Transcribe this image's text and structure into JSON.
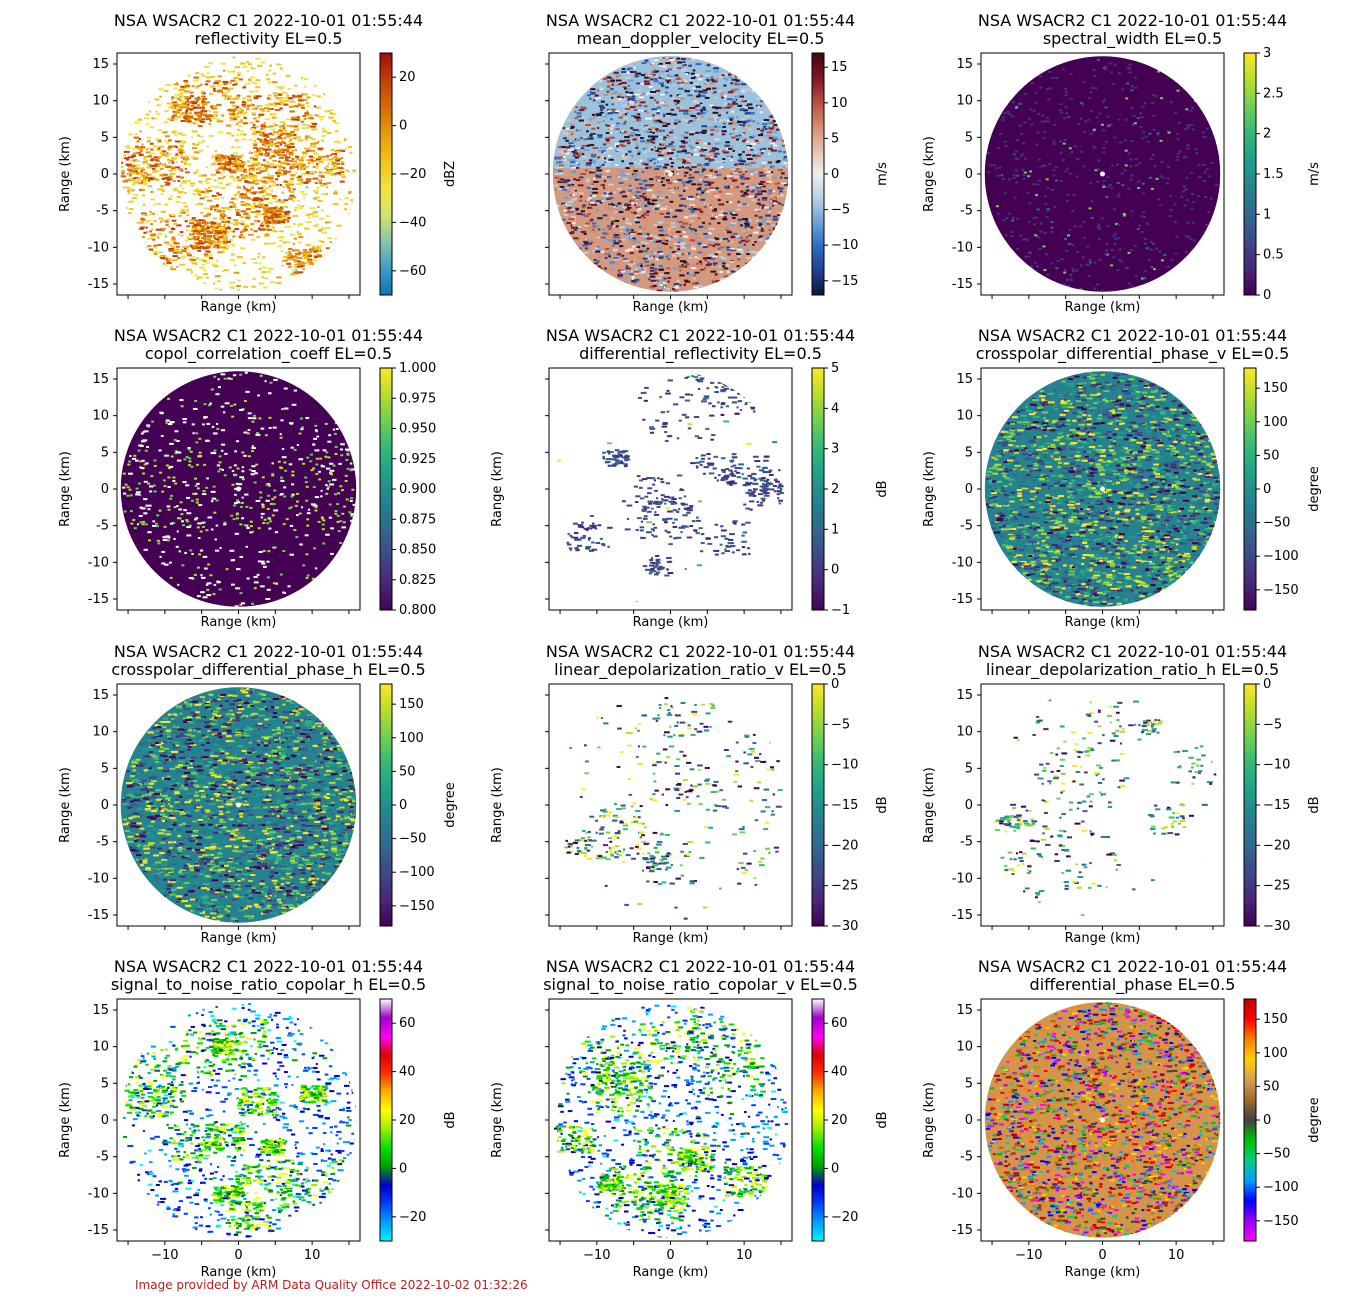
{
  "footer": "Image provided by ARM Data Quality Office 2022-10-02 01:32:26",
  "chart_data": [
    {
      "type": "heatmap",
      "title": "NSA WSACR2 C1 2022-10-01 01:55:44",
      "subtitle": "reflectivity  EL=0.5",
      "xlabel": "Range (km)",
      "ylabel": "Range (km)",
      "xlim": [
        -16.5,
        16.5
      ],
      "ylim": [
        -16.5,
        16.5
      ],
      "ticks": [
        -15,
        -10,
        -5,
        0,
        5,
        10,
        15
      ],
      "cbar_label": "dBZ",
      "cbar_range": [
        -70,
        30
      ],
      "cbar_ticks": [
        -60,
        -40,
        -20,
        0,
        20
      ],
      "colormap": "reflectivity",
      "pattern": "clouds"
    },
    {
      "type": "heatmap",
      "title": "NSA WSACR2 C1 2022-10-01 01:55:44",
      "subtitle": "mean_doppler_velocity  EL=0.5",
      "xlabel": "Range (km)",
      "ylabel": "",
      "xlim": [
        -16.5,
        16.5
      ],
      "ylim": [
        -16.5,
        16.5
      ],
      "ticks": [
        -15,
        -10,
        -5,
        0,
        5,
        10,
        15
      ],
      "cbar_label": "m/s",
      "cbar_range": [
        -17,
        17
      ],
      "cbar_ticks": [
        -15,
        -10,
        -5,
        0,
        5,
        10,
        15
      ],
      "colormap": "velocity",
      "pattern": "velocity"
    },
    {
      "type": "heatmap",
      "title": "NSA WSACR2 C1 2022-10-01 01:55:44",
      "subtitle": "spectral_width  EL=0.5",
      "xlabel": "Range (km)",
      "ylabel": "Range (km)",
      "xlim": [
        -16.5,
        16.5
      ],
      "ylim": [
        -16.5,
        16.5
      ],
      "ticks": [
        -15,
        -10,
        -5,
        0,
        5,
        10,
        15
      ],
      "cbar_label": "m/s",
      "cbar_range": [
        0,
        3
      ],
      "cbar_ticks": [
        0.0,
        0.5,
        1.0,
        1.5,
        2.0,
        2.5,
        3.0
      ],
      "colormap": "viridis",
      "pattern": "low"
    },
    {
      "type": "heatmap",
      "title": "NSA WSACR2 C1 2022-10-01 01:55:44",
      "subtitle": "copol_correlation_coeff  EL=0.5",
      "xlabel": "Range (km)",
      "ylabel": "Range (km)",
      "xlim": [
        -16.5,
        16.5
      ],
      "ylim": [
        -16.5,
        16.5
      ],
      "ticks": [
        -15,
        -10,
        -5,
        0,
        5,
        10,
        15
      ],
      "cbar_label": "",
      "cbar_range": [
        0.8,
        1.0
      ],
      "cbar_ticks": [
        0.8,
        0.825,
        0.85,
        0.875,
        0.9,
        0.925,
        0.95,
        0.975,
        1.0
      ],
      "cbar_tick_labels": [
        "0.800",
        "0.825",
        "0.850",
        "0.875",
        "0.900",
        "0.925",
        "0.950",
        "0.975",
        "1.000"
      ],
      "colormap": "viridis",
      "pattern": "rhohv"
    },
    {
      "type": "heatmap",
      "title": "NSA WSACR2 C1 2022-10-01 01:55:44",
      "subtitle": "differential_reflectivity  EL=0.5",
      "xlabel": "Range (km)",
      "ylabel": "Range (km)",
      "xlim": [
        -16.5,
        16.5
      ],
      "ylim": [
        -16.5,
        16.5
      ],
      "ticks": [
        -15,
        -10,
        -5,
        0,
        5,
        10,
        15
      ],
      "cbar_label": "dB",
      "cbar_range": [
        -1,
        5
      ],
      "cbar_ticks": [
        -1,
        0,
        1,
        2,
        3,
        4,
        5
      ],
      "colormap": "viridis",
      "pattern": "zdr"
    },
    {
      "type": "heatmap",
      "title": "NSA WSACR2 C1 2022-10-01 01:55:44",
      "subtitle": "crosspolar_differential_phase_v  EL=0.5",
      "xlabel": "Range (km)",
      "ylabel": "Range (km)",
      "xlim": [
        -16.5,
        16.5
      ],
      "ylim": [
        -16.5,
        16.5
      ],
      "ticks": [
        -15,
        -10,
        -5,
        0,
        5,
        10,
        15
      ],
      "cbar_label": "degree",
      "cbar_range": [
        -180,
        180
      ],
      "cbar_ticks": [
        -150,
        -100,
        -50,
        0,
        50,
        100,
        150
      ],
      "colormap": "viridis",
      "pattern": "noise"
    },
    {
      "type": "heatmap",
      "title": "NSA WSACR2 C1 2022-10-01 01:55:44",
      "subtitle": "crosspolar_differential_phase_h  EL=0.5",
      "xlabel": "Range (km)",
      "ylabel": "Range (km)",
      "xlim": [
        -16.5,
        16.5
      ],
      "ylim": [
        -16.5,
        16.5
      ],
      "ticks": [
        -15,
        -10,
        -5,
        0,
        5,
        10,
        15
      ],
      "cbar_label": "degree",
      "cbar_range": [
        -180,
        180
      ],
      "cbar_ticks": [
        -150,
        -100,
        -50,
        0,
        50,
        100,
        150
      ],
      "colormap": "viridis",
      "pattern": "noise"
    },
    {
      "type": "heatmap",
      "title": "NSA WSACR2 C1 2022-10-01 01:55:44",
      "subtitle": "linear_depolarization_ratio_v  EL=0.5",
      "xlabel": "Range (km)",
      "ylabel": "Range (km)",
      "xlim": [
        -16.5,
        16.5
      ],
      "ylim": [
        -16.5,
        16.5
      ],
      "ticks": [
        -15,
        -10,
        -5,
        0,
        5,
        10,
        15
      ],
      "cbar_label": "dB",
      "cbar_range": [
        -30,
        0
      ],
      "cbar_ticks": [
        -30,
        -25,
        -20,
        -15,
        -10,
        -5,
        0
      ],
      "colormap": "viridis",
      "pattern": "ldr"
    },
    {
      "type": "heatmap",
      "title": "NSA WSACR2 C1 2022-10-01 01:55:44",
      "subtitle": "linear_depolarization_ratio_h  EL=0.5",
      "xlabel": "Range (km)",
      "ylabel": "Range (km)",
      "xlim": [
        -16.5,
        16.5
      ],
      "ylim": [
        -16.5,
        16.5
      ],
      "ticks": [
        -15,
        -10,
        -5,
        0,
        5,
        10,
        15
      ],
      "cbar_label": "dB",
      "cbar_range": [
        -30,
        0
      ],
      "cbar_ticks": [
        -30,
        -25,
        -20,
        -15,
        -10,
        -5,
        0
      ],
      "colormap": "viridis",
      "pattern": "ldr"
    },
    {
      "type": "heatmap",
      "title": "NSA WSACR2 C1 2022-10-01 01:55:44",
      "subtitle": "signal_to_noise_ratio_copolar_h  EL=0.5",
      "xlabel": "Range (km)",
      "ylabel": "Range (km)",
      "xlim": [
        -16.5,
        16.5
      ],
      "ylim": [
        -16.5,
        16.5
      ],
      "ticks": [
        -15,
        -10,
        -5,
        0,
        5,
        10,
        15
      ],
      "xticks_shown": [
        -10,
        0,
        10
      ],
      "cbar_label": "dB",
      "cbar_range": [
        -30,
        70
      ],
      "cbar_ticks": [
        -20,
        0,
        20,
        40,
        60
      ],
      "colormap": "snr",
      "pattern": "snr"
    },
    {
      "type": "heatmap",
      "title": "NSA WSACR2 C1 2022-10-01 01:55:44",
      "subtitle": "signal_to_noise_ratio_copolar_v  EL=0.5",
      "xlabel": "Range (km)",
      "ylabel": "Range (km)",
      "xlim": [
        -16.5,
        16.5
      ],
      "ylim": [
        -16.5,
        16.5
      ],
      "ticks": [
        -15,
        -10,
        -5,
        0,
        5,
        10,
        15
      ],
      "xticks_shown": [
        -10,
        0,
        10
      ],
      "cbar_label": "dB",
      "cbar_range": [
        -30,
        70
      ],
      "cbar_ticks": [
        -20,
        0,
        20,
        40,
        60
      ],
      "colormap": "snr",
      "pattern": "snr"
    },
    {
      "type": "heatmap",
      "title": "NSA WSACR2 C1 2022-10-01 01:55:44",
      "subtitle": "differential_phase  EL=0.5",
      "xlabel": "Range (km)",
      "ylabel": "Range (km)",
      "xlim": [
        -16.5,
        16.5
      ],
      "ylim": [
        -16.5,
        16.5
      ],
      "ticks": [
        -15,
        -10,
        -5,
        0,
        5,
        10,
        15
      ],
      "xticks_shown": [
        -10,
        0,
        10
      ],
      "cbar_label": "degree",
      "cbar_range": [
        -180,
        180
      ],
      "cbar_ticks": [
        -150,
        -100,
        -50,
        0,
        50,
        100,
        150
      ],
      "colormap": "phase",
      "pattern": "phase"
    }
  ]
}
